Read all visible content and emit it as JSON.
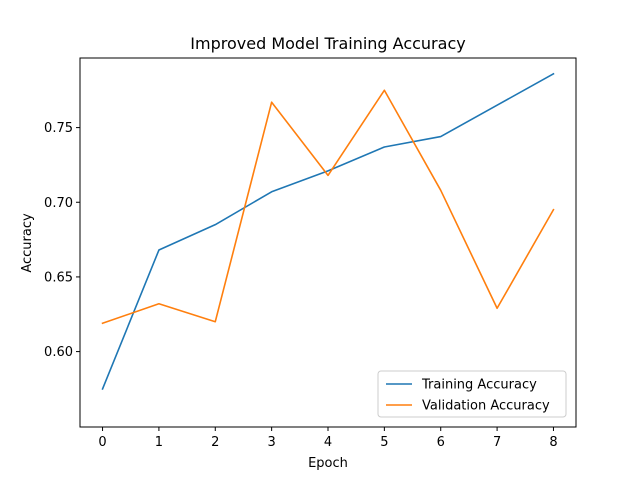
{
  "chart_data": {
    "type": "line",
    "title": "Improved Model Training Accuracy",
    "xlabel": "Epoch",
    "ylabel": "Accuracy",
    "x": [
      0,
      1,
      2,
      3,
      4,
      5,
      6,
      7,
      8
    ],
    "xlim": [
      -0.4,
      8.4
    ],
    "ylim": [
      0.5495,
      0.7966
    ],
    "xticks": [
      0,
      1,
      2,
      3,
      4,
      5,
      6,
      7,
      8
    ],
    "yticks": [
      0.6,
      0.65,
      0.7,
      0.75
    ],
    "ytick_labels": [
      "0.60",
      "0.65",
      "0.70",
      "0.75"
    ],
    "grid": false,
    "legend_position": "lower-right",
    "series": [
      {
        "name": "Training Accuracy",
        "color": "#1f77b4",
        "values": [
          0.575,
          0.668,
          0.685,
          0.707,
          0.721,
          0.737,
          0.744,
          0.765,
          0.786
        ]
      },
      {
        "name": "Validation Accuracy",
        "color": "#ff7f0e",
        "values": [
          0.619,
          0.632,
          0.62,
          0.767,
          0.718,
          0.775,
          0.708,
          0.629,
          0.695
        ]
      }
    ]
  }
}
